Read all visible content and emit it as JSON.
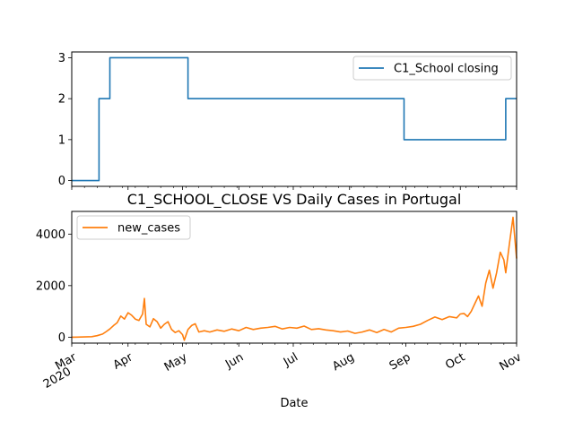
{
  "chart_data": [
    {
      "type": "line",
      "title": "",
      "xlabel": "",
      "ylabel": "",
      "xlim": [
        "2020-03-01",
        "2020-11-01"
      ],
      "ylim": [
        -0.14,
        3.14
      ],
      "yticks": [
        0,
        1,
        2,
        3
      ],
      "legend_position": "upper right",
      "grid": false,
      "series": [
        {
          "name": "C1_School closing",
          "color": "#1f77b4",
          "step": true,
          "points": [
            [
              "2020-03-01",
              0
            ],
            [
              "2020-03-16",
              2
            ],
            [
              "2020-03-22",
              3
            ],
            [
              "2020-05-04",
              2
            ],
            [
              "2020-08-31",
              1
            ],
            [
              "2020-10-26",
              2
            ],
            [
              "2020-11-01",
              2
            ]
          ]
        }
      ]
    },
    {
      "type": "line",
      "title": "C1_SCHOOL_CLOSE VS Daily Cases in Portugal",
      "xlabel": "Date",
      "ylabel": "",
      "xlim": [
        "2020-03-01",
        "2020-11-01"
      ],
      "ylim": [
        -230,
        4880
      ],
      "yticks": [
        0,
        2000,
        4000
      ],
      "x_major_ticks": [
        {
          "date": "2020-03-01",
          "label": "Mar",
          "sublabel": "2020"
        },
        {
          "date": "2020-04-01",
          "label": "Apr"
        },
        {
          "date": "2020-05-01",
          "label": "May"
        },
        {
          "date": "2020-06-01",
          "label": "Jun"
        },
        {
          "date": "2020-07-01",
          "label": "Jul"
        },
        {
          "date": "2020-08-01",
          "label": "Aug"
        },
        {
          "date": "2020-09-01",
          "label": "Sep"
        },
        {
          "date": "2020-10-01",
          "label": "Oct"
        },
        {
          "date": "2020-11-01",
          "label": "Nov"
        }
      ],
      "legend_position": "upper left",
      "grid": false,
      "series": [
        {
          "name": "new_cases",
          "color": "#ff7f0e",
          "points": [
            [
              "2020-03-01",
              0
            ],
            [
              "2020-03-04",
              2
            ],
            [
              "2020-03-08",
              10
            ],
            [
              "2020-03-12",
              20
            ],
            [
              "2020-03-15",
              60
            ],
            [
              "2020-03-18",
              120
            ],
            [
              "2020-03-20",
              220
            ],
            [
              "2020-03-22",
              320
            ],
            [
              "2020-03-24",
              450
            ],
            [
              "2020-03-26",
              560
            ],
            [
              "2020-03-28",
              820
            ],
            [
              "2020-03-30",
              700
            ],
            [
              "2020-04-01",
              950
            ],
            [
              "2020-04-03",
              850
            ],
            [
              "2020-04-05",
              700
            ],
            [
              "2020-04-07",
              650
            ],
            [
              "2020-04-09",
              900
            ],
            [
              "2020-04-10",
              1500
            ],
            [
              "2020-04-11",
              500
            ],
            [
              "2020-04-13",
              400
            ],
            [
              "2020-04-15",
              720
            ],
            [
              "2020-04-17",
              600
            ],
            [
              "2020-04-19",
              350
            ],
            [
              "2020-04-21",
              500
            ],
            [
              "2020-04-23",
              600
            ],
            [
              "2020-04-25",
              300
            ],
            [
              "2020-04-27",
              180
            ],
            [
              "2020-04-29",
              250
            ],
            [
              "2020-05-01",
              100
            ],
            [
              "2020-05-02",
              -120
            ],
            [
              "2020-05-04",
              300
            ],
            [
              "2020-05-06",
              450
            ],
            [
              "2020-05-08",
              520
            ],
            [
              "2020-05-10",
              200
            ],
            [
              "2020-05-13",
              250
            ],
            [
              "2020-05-16",
              200
            ],
            [
              "2020-05-20",
              280
            ],
            [
              "2020-05-24",
              230
            ],
            [
              "2020-05-28",
              320
            ],
            [
              "2020-06-01",
              250
            ],
            [
              "2020-06-05",
              380
            ],
            [
              "2020-06-09",
              300
            ],
            [
              "2020-06-13",
              350
            ],
            [
              "2020-06-17",
              380
            ],
            [
              "2020-06-21",
              420
            ],
            [
              "2020-06-25",
              320
            ],
            [
              "2020-06-29",
              380
            ],
            [
              "2020-07-03",
              350
            ],
            [
              "2020-07-07",
              430
            ],
            [
              "2020-07-11",
              300
            ],
            [
              "2020-07-15",
              330
            ],
            [
              "2020-07-19",
              280
            ],
            [
              "2020-07-23",
              250
            ],
            [
              "2020-07-27",
              200
            ],
            [
              "2020-07-31",
              240
            ],
            [
              "2020-08-04",
              150
            ],
            [
              "2020-08-08",
              200
            ],
            [
              "2020-08-12",
              280
            ],
            [
              "2020-08-16",
              180
            ],
            [
              "2020-08-20",
              300
            ],
            [
              "2020-08-24",
              200
            ],
            [
              "2020-08-28",
              350
            ],
            [
              "2020-09-01",
              380
            ],
            [
              "2020-09-05",
              420
            ],
            [
              "2020-09-09",
              500
            ],
            [
              "2020-09-13",
              650
            ],
            [
              "2020-09-17",
              780
            ],
            [
              "2020-09-21",
              680
            ],
            [
              "2020-09-25",
              800
            ],
            [
              "2020-09-29",
              750
            ],
            [
              "2020-10-01",
              900
            ],
            [
              "2020-10-03",
              920
            ],
            [
              "2020-10-05",
              800
            ],
            [
              "2020-10-07",
              1000
            ],
            [
              "2020-10-09",
              1300
            ],
            [
              "2020-10-11",
              1600
            ],
            [
              "2020-10-13",
              1200
            ],
            [
              "2020-10-15",
              2100
            ],
            [
              "2020-10-17",
              2600
            ],
            [
              "2020-10-19",
              1900
            ],
            [
              "2020-10-21",
              2500
            ],
            [
              "2020-10-23",
              3300
            ],
            [
              "2020-10-25",
              3000
            ],
            [
              "2020-10-26",
              2500
            ],
            [
              "2020-10-28",
              3600
            ],
            [
              "2020-10-30",
              4650
            ],
            [
              "2020-11-01",
              3050
            ]
          ]
        }
      ]
    }
  ]
}
